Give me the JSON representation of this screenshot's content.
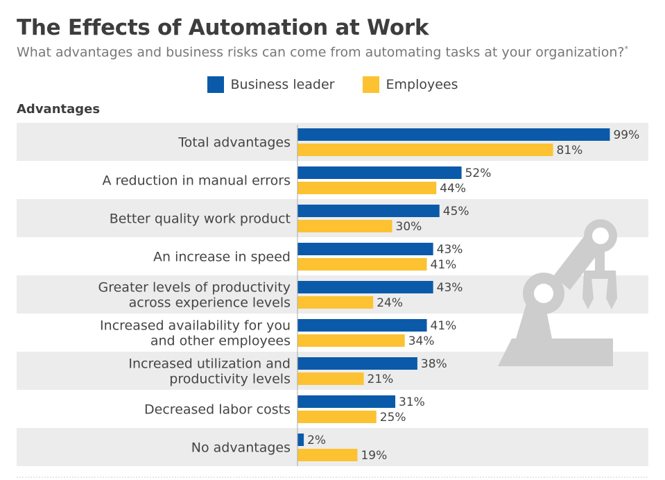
{
  "title": "The Effects of Automation at Work",
  "subtitle": "What advantages and business risks can come from automating tasks at your organization?",
  "subtitle_mark": "*",
  "section_label": "Advantages",
  "colors": {
    "business_leader": "#0a5aa9",
    "employees": "#fcc232",
    "band": "#ececec",
    "illustration": "#cdcdcd"
  },
  "chart_data": {
    "type": "bar",
    "orientation": "horizontal",
    "value_suffix": "%",
    "xlim": [
      0,
      100
    ],
    "legend_position": "top-center",
    "categories": [
      [
        "Total advantages"
      ],
      [
        "A reduction in manual errors"
      ],
      [
        "Better quality work product"
      ],
      [
        "An increase in speed"
      ],
      [
        "Greater levels of productivity",
        "across experience levels"
      ],
      [
        "Increased availability for you",
        "and other employees"
      ],
      [
        "Increased utilization and",
        "productivity levels"
      ],
      [
        "Decreased labor costs"
      ],
      [
        "No advantages"
      ]
    ],
    "series": [
      {
        "name": "Business leader",
        "values": [
          99,
          52,
          45,
          43,
          43,
          41,
          38,
          31,
          2
        ]
      },
      {
        "name": "Employees",
        "values": [
          81,
          44,
          30,
          41,
          24,
          34,
          21,
          25,
          19
        ]
      }
    ]
  }
}
